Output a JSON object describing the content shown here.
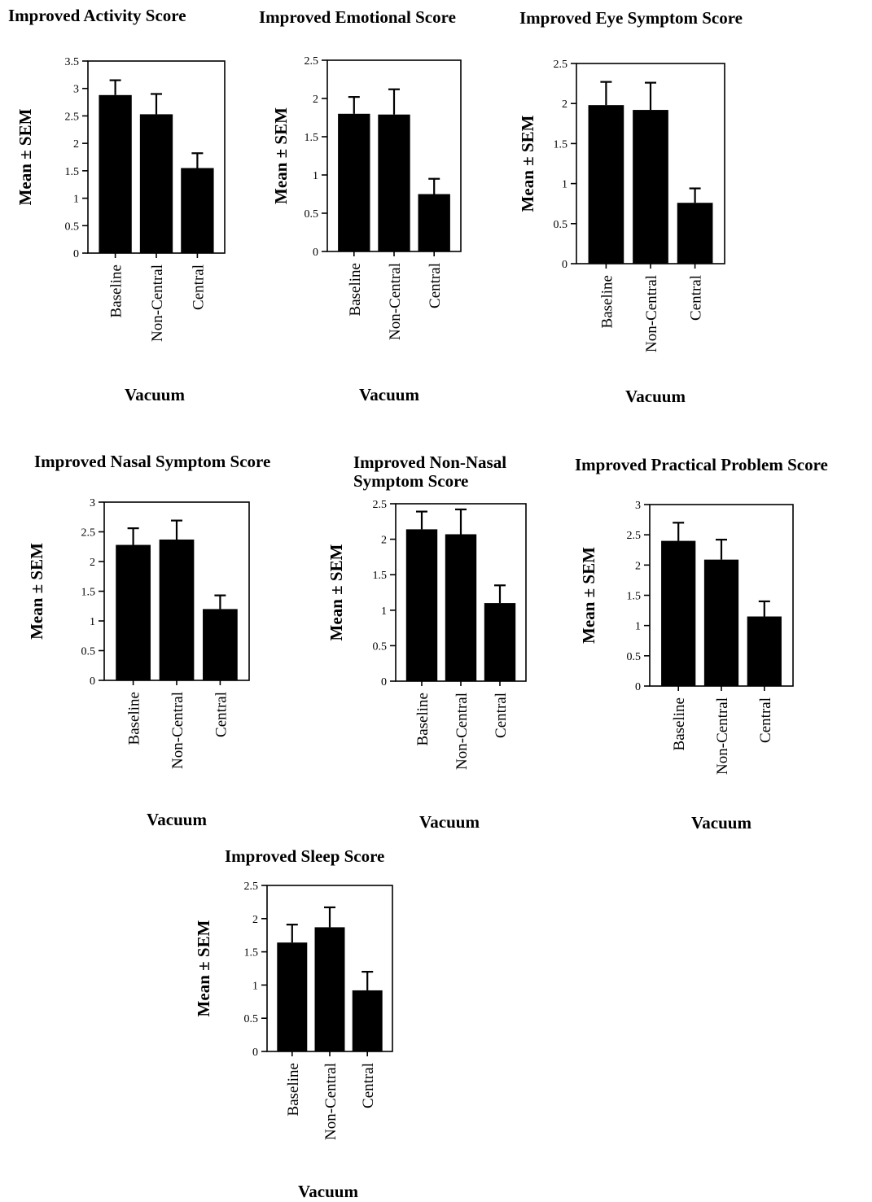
{
  "chart_data": [
    {
      "type": "bar",
      "title": "Improved Activity Score",
      "ylabel": "Mean ± SEM",
      "xlabel": "Vacuum",
      "categories": [
        "Baseline",
        "Non-Central",
        "Central"
      ],
      "values": [
        2.88,
        2.53,
        1.55
      ],
      "errors": [
        0.27,
        0.37,
        0.27
      ],
      "ylim": [
        0,
        3.5
      ],
      "yticks": [
        "0",
        "0.5",
        "1",
        "1.5",
        "2",
        "2.5",
        "3",
        "3.5"
      ],
      "tick_values": [
        0,
        0.5,
        1,
        1.5,
        2,
        2.5,
        3,
        3.5
      ]
    },
    {
      "type": "bar",
      "title": "Improved Emotional Score",
      "ylabel": "Mean ± SEM",
      "xlabel": "Vacuum",
      "categories": [
        "Baseline",
        "Non-Central",
        "Central"
      ],
      "values": [
        1.8,
        1.79,
        0.75
      ],
      "errors": [
        0.22,
        0.33,
        0.2
      ],
      "ylim": [
        0,
        2.5
      ],
      "yticks": [
        "0",
        "0.5",
        "1",
        "1.5",
        "2",
        "2.5"
      ],
      "tick_values": [
        0,
        0.5,
        1,
        1.5,
        2,
        2.5
      ]
    },
    {
      "type": "bar",
      "title": "Improved Eye Symptom Score",
      "ylabel": "Mean ± SEM",
      "xlabel": "Vacuum",
      "categories": [
        "Baseline",
        "Non-Central",
        "Central"
      ],
      "values": [
        1.98,
        1.92,
        0.76
      ],
      "errors": [
        0.29,
        0.34,
        0.18
      ],
      "ylim": [
        0,
        2.5
      ],
      "yticks": [
        "0",
        "0.5",
        "1",
        "1.5",
        "2",
        "2.5"
      ],
      "tick_values": [
        0,
        0.5,
        1,
        1.5,
        2,
        2.5
      ]
    },
    {
      "type": "bar",
      "title": "Improved Nasal Symptom Score",
      "ylabel": "Mean ± SEM",
      "xlabel": "Vacuum",
      "categories": [
        "Baseline",
        "Non-Central",
        "Central"
      ],
      "values": [
        2.28,
        2.37,
        1.2
      ],
      "errors": [
        0.28,
        0.32,
        0.23
      ],
      "ylim": [
        0,
        3
      ],
      "yticks": [
        "0",
        "0.5",
        "1",
        "1.5",
        "2",
        "2.5",
        "3"
      ],
      "tick_values": [
        0,
        0.5,
        1,
        1.5,
        2,
        2.5,
        3
      ]
    },
    {
      "type": "bar",
      "title": "Improved Non-Nasal Symptom Score",
      "title_lines": [
        "Improved Non-Nasal",
        "Symptom Score"
      ],
      "ylabel": "Mean ± SEM",
      "xlabel": "Vacuum",
      "categories": [
        "Baseline",
        "Non-Central",
        "Central"
      ],
      "values": [
        2.14,
        2.07,
        1.1
      ],
      "errors": [
        0.25,
        0.35,
        0.25
      ],
      "ylim": [
        0,
        2.5
      ],
      "yticks": [
        "0",
        "0.5",
        "1",
        "1.5",
        "2",
        "2.5"
      ],
      "tick_values": [
        0,
        0.5,
        1,
        1.5,
        2,
        2.5
      ]
    },
    {
      "type": "bar",
      "title": "Improved Practical Problem Score",
      "ylabel": "Mean ± SEM",
      "xlabel": "Vacuum",
      "categories": [
        "Baseline",
        "Non-Central",
        "Central"
      ],
      "values": [
        2.4,
        2.09,
        1.15
      ],
      "errors": [
        0.3,
        0.33,
        0.25
      ],
      "ylim": [
        0,
        3
      ],
      "yticks": [
        "0",
        "0.5",
        "1",
        "1.5",
        "2",
        "2.5",
        "3"
      ],
      "tick_values": [
        0,
        0.5,
        1,
        1.5,
        2,
        2.5,
        3
      ]
    },
    {
      "type": "bar",
      "title": "Improved Sleep Score",
      "ylabel": "Mean ± SEM",
      "xlabel": "Vacuum",
      "categories": [
        "Baseline",
        "Non-Central",
        "Central"
      ],
      "values": [
        1.64,
        1.87,
        0.92
      ],
      "errors": [
        0.27,
        0.3,
        0.28
      ],
      "ylim": [
        0,
        2.5
      ],
      "yticks": [
        "0",
        "0.5",
        "1",
        "1.5",
        "2",
        "2.5"
      ],
      "tick_values": [
        0,
        0.5,
        1,
        1.5,
        2,
        2.5
      ]
    }
  ]
}
